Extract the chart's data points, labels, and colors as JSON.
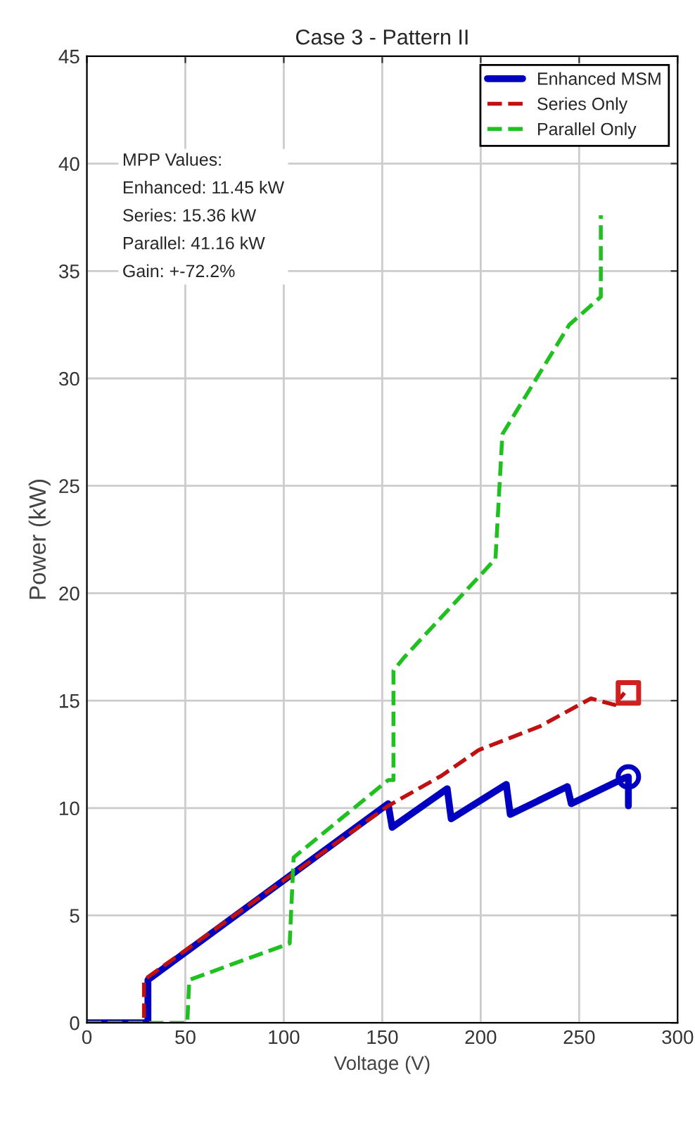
{
  "chart_data": {
    "type": "line",
    "title": "Case 3 - Pattern II",
    "xlabel": "Voltage (V)",
    "ylabel": "Power (kW)",
    "xlim": [
      0,
      300
    ],
    "xticks": [
      0,
      50,
      100,
      150,
      200,
      250,
      300
    ],
    "ylim": [
      0,
      45
    ],
    "yticks": [
      0,
      5,
      10,
      15,
      20,
      25,
      30,
      35,
      40,
      45
    ],
    "grid": true,
    "legend": "top right",
    "annotations": [
      "MPP Values:\nEnhanced: 11.45 kW\nSeries: 15.36 kW\nParallel: 41.16 kW\nGain: +-72.2%"
    ],
    "series": [
      {
        "name": "Enhanced MSM",
        "color": "#0000c0",
        "line_style": "solid",
        "x": [
          0,
          31,
          31,
          153,
          155,
          183,
          185,
          213,
          215,
          244,
          246,
          273,
          275,
          275
        ],
        "values": [
          0,
          0,
          2,
          10.2,
          9.1,
          10.9,
          9.5,
          11.1,
          9.7,
          11,
          10.2,
          11.4,
          11.45,
          10.1
        ]
      },
      {
        "name": "Series Only",
        "color": "#c01010",
        "line_style": "dashed",
        "x": [
          0,
          29,
          29,
          153,
          180,
          199,
          230,
          256,
          268,
          273
        ],
        "values": [
          0,
          0,
          2,
          10.1,
          11.5,
          12.7,
          13.8,
          15.1,
          14.8,
          15.36
        ]
      },
      {
        "name": "Parallel Only",
        "color": "#20c020",
        "line_style": "dashed",
        "x": [
          0,
          51,
          52,
          103,
          105,
          153,
          155.7,
          155.7,
          161,
          207.5,
          211,
          245,
          261,
          261
        ],
        "values": [
          0,
          0,
          2,
          3.7,
          7.7,
          11.3,
          11.3,
          16.4,
          17.0,
          21.6,
          27.4,
          32.5,
          33.8,
          37.6
        ]
      },
      {
        "type": "scatter",
        "color": "#0000c0",
        "marker": "circle",
        "x": [
          275
        ],
        "values": [
          11.45
        ]
      },
      {
        "type": "scatter",
        "color": "#d02020",
        "marker": "square",
        "x": [
          275
        ],
        "values": [
          15.36
        ]
      }
    ]
  }
}
